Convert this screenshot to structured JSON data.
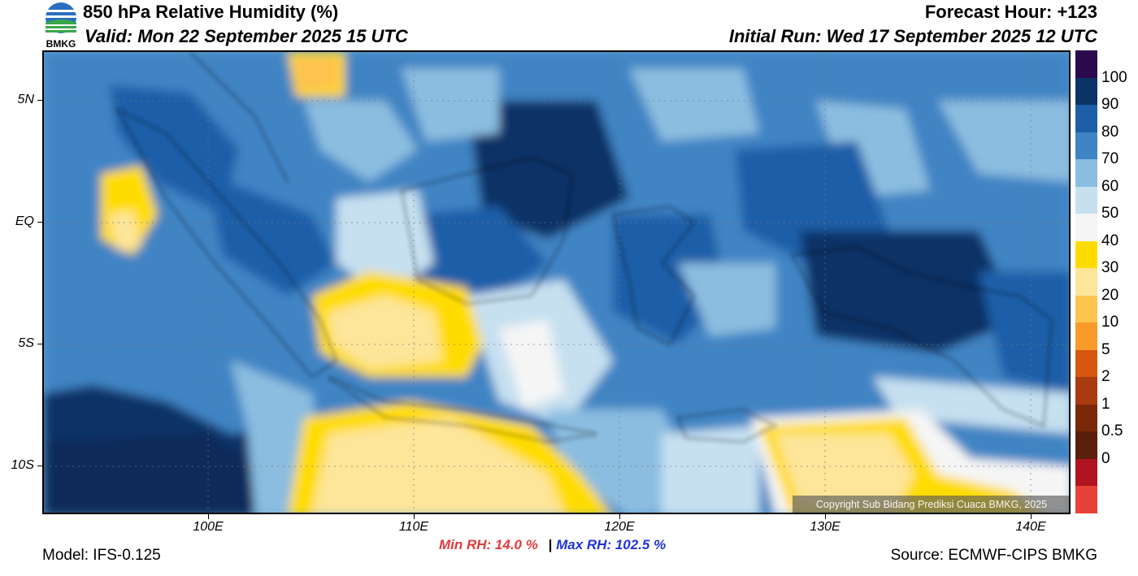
{
  "header": {
    "title": "850 hPa Relative Humidity (%)",
    "valid": "Valid: Mon 22 September 2025 15 UTC",
    "forecast_hour": "Forecast Hour: +123",
    "initial_run": "Initial Run: Wed 17 September 2025 12 UTC",
    "logo_text": "BMKG"
  },
  "axes": {
    "lat_labels": [
      "5N",
      "EQ",
      "5S",
      "10S"
    ],
    "lon_labels": [
      "100E",
      "110E",
      "120E",
      "130E",
      "140E"
    ]
  },
  "colorbar": {
    "labels": [
      "100",
      "90",
      "80",
      "70",
      "60",
      "50",
      "40",
      "30",
      "20",
      "10",
      "5",
      "2",
      "1",
      "0.5",
      "0"
    ],
    "colors": [
      "#2b0a4d",
      "#0c3366",
      "#1e5ea8",
      "#3f84c4",
      "#8bbde0",
      "#c6e0f0",
      "#f5f5f5",
      "#ffdc00",
      "#fde59a",
      "#fdc34f",
      "#f99a2a",
      "#d9560f",
      "#aa3a10",
      "#7a2808",
      "#5a1e0b",
      "#b01420",
      "#e8413a"
    ]
  },
  "stats": {
    "min_rh": "Min RH:  14.0 %",
    "separator": "|",
    "max_rh": "Max RH: 102.5 %"
  },
  "footer": {
    "model": "Model: IFS-0.125",
    "source": "Source: ECMWF-CIPS BMKG",
    "copyright": "Copyright Sub Bidang Prediksi Cuaca BMKG, 2025"
  }
}
